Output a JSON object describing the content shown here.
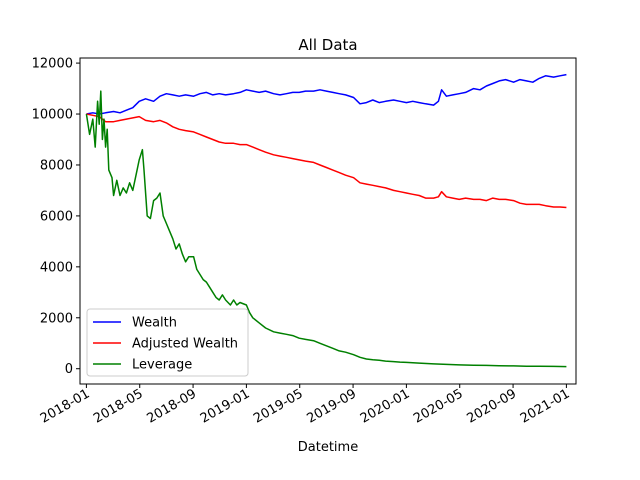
{
  "chart_data": {
    "type": "line",
    "title": "All Data",
    "xlabel": "Datetime",
    "ylabel": "",
    "xlim": [
      2017.96,
      2021.06
    ],
    "ylim": [
      -600,
      12200
    ],
    "x_ticks": [
      {
        "value": 2018.0,
        "label": "2018-01"
      },
      {
        "value": 2018.3333,
        "label": "2018-05"
      },
      {
        "value": 2018.6667,
        "label": "2018-09"
      },
      {
        "value": 2019.0,
        "label": "2019-01"
      },
      {
        "value": 2019.3333,
        "label": "2019-05"
      },
      {
        "value": 2019.6667,
        "label": "2019-09"
      },
      {
        "value": 2020.0,
        "label": "2020-01"
      },
      {
        "value": 2020.3333,
        "label": "2020-05"
      },
      {
        "value": 2020.6667,
        "label": "2020-09"
      },
      {
        "value": 2021.0,
        "label": "2021-01"
      }
    ],
    "y_ticks": [
      {
        "value": 0,
        "label": "0"
      },
      {
        "value": 2000,
        "label": "2000"
      },
      {
        "value": 4000,
        "label": "4000"
      },
      {
        "value": 6000,
        "label": "6000"
      },
      {
        "value": 8000,
        "label": "8000"
      },
      {
        "value": 10000,
        "label": "10000"
      },
      {
        "value": 12000,
        "label": "12000"
      }
    ],
    "legend_position": "lower-left",
    "series": [
      {
        "name": "Wealth",
        "color": "#0000ff",
        "points": [
          [
            2018.0,
            10000
          ],
          [
            2018.04,
            10050
          ],
          [
            2018.08,
            10000
          ],
          [
            2018.12,
            10050
          ],
          [
            2018.17,
            10100
          ],
          [
            2018.21,
            10050
          ],
          [
            2018.25,
            10150
          ],
          [
            2018.29,
            10250
          ],
          [
            2018.33,
            10500
          ],
          [
            2018.37,
            10600
          ],
          [
            2018.42,
            10500
          ],
          [
            2018.46,
            10700
          ],
          [
            2018.5,
            10800
          ],
          [
            2018.54,
            10750
          ],
          [
            2018.58,
            10700
          ],
          [
            2018.62,
            10750
          ],
          [
            2018.67,
            10700
          ],
          [
            2018.71,
            10800
          ],
          [
            2018.75,
            10850
          ],
          [
            2018.79,
            10750
          ],
          [
            2018.83,
            10800
          ],
          [
            2018.87,
            10750
          ],
          [
            2018.92,
            10800
          ],
          [
            2018.96,
            10850
          ],
          [
            2019.0,
            10950
          ],
          [
            2019.04,
            10900
          ],
          [
            2019.08,
            10850
          ],
          [
            2019.12,
            10900
          ],
          [
            2019.17,
            10800
          ],
          [
            2019.21,
            10750
          ],
          [
            2019.25,
            10800
          ],
          [
            2019.29,
            10850
          ],
          [
            2019.33,
            10850
          ],
          [
            2019.37,
            10900
          ],
          [
            2019.42,
            10900
          ],
          [
            2019.46,
            10950
          ],
          [
            2019.5,
            10900
          ],
          [
            2019.54,
            10850
          ],
          [
            2019.58,
            10800
          ],
          [
            2019.62,
            10750
          ],
          [
            2019.67,
            10650
          ],
          [
            2019.71,
            10400
          ],
          [
            2019.75,
            10450
          ],
          [
            2019.79,
            10550
          ],
          [
            2019.83,
            10450
          ],
          [
            2019.87,
            10500
          ],
          [
            2019.92,
            10550
          ],
          [
            2019.96,
            10500
          ],
          [
            2020.0,
            10450
          ],
          [
            2020.04,
            10500
          ],
          [
            2020.08,
            10450
          ],
          [
            2020.12,
            10400
          ],
          [
            2020.17,
            10350
          ],
          [
            2020.2,
            10500
          ],
          [
            2020.22,
            10950
          ],
          [
            2020.25,
            10700
          ],
          [
            2020.29,
            10750
          ],
          [
            2020.33,
            10800
          ],
          [
            2020.37,
            10850
          ],
          [
            2020.42,
            11000
          ],
          [
            2020.46,
            10950
          ],
          [
            2020.5,
            11100
          ],
          [
            2020.54,
            11200
          ],
          [
            2020.58,
            11300
          ],
          [
            2020.62,
            11350
          ],
          [
            2020.67,
            11250
          ],
          [
            2020.71,
            11350
          ],
          [
            2020.75,
            11300
          ],
          [
            2020.79,
            11250
          ],
          [
            2020.83,
            11400
          ],
          [
            2020.87,
            11500
          ],
          [
            2020.92,
            11450
          ],
          [
            2020.96,
            11500
          ],
          [
            2021.0,
            11550
          ]
        ]
      },
      {
        "name": "Adjusted Wealth",
        "color": "#ff0000",
        "points": [
          [
            2018.0,
            10000
          ],
          [
            2018.04,
            9950
          ],
          [
            2018.08,
            9900
          ],
          [
            2018.12,
            9700
          ],
          [
            2018.17,
            9700
          ],
          [
            2018.21,
            9750
          ],
          [
            2018.25,
            9800
          ],
          [
            2018.29,
            9850
          ],
          [
            2018.33,
            9900
          ],
          [
            2018.37,
            9750
          ],
          [
            2018.42,
            9700
          ],
          [
            2018.46,
            9750
          ],
          [
            2018.5,
            9650
          ],
          [
            2018.54,
            9500
          ],
          [
            2018.58,
            9400
          ],
          [
            2018.62,
            9350
          ],
          [
            2018.67,
            9300
          ],
          [
            2018.71,
            9200
          ],
          [
            2018.75,
            9100
          ],
          [
            2018.79,
            9000
          ],
          [
            2018.83,
            8900
          ],
          [
            2018.87,
            8850
          ],
          [
            2018.92,
            8850
          ],
          [
            2018.96,
            8800
          ],
          [
            2019.0,
            8800
          ],
          [
            2019.04,
            8700
          ],
          [
            2019.08,
            8600
          ],
          [
            2019.12,
            8500
          ],
          [
            2019.17,
            8400
          ],
          [
            2019.21,
            8350
          ],
          [
            2019.25,
            8300
          ],
          [
            2019.29,
            8250
          ],
          [
            2019.33,
            8200
          ],
          [
            2019.37,
            8150
          ],
          [
            2019.42,
            8100
          ],
          [
            2019.46,
            8000
          ],
          [
            2019.5,
            7900
          ],
          [
            2019.54,
            7800
          ],
          [
            2019.58,
            7700
          ],
          [
            2019.62,
            7600
          ],
          [
            2019.67,
            7500
          ],
          [
            2019.71,
            7300
          ],
          [
            2019.75,
            7250
          ],
          [
            2019.79,
            7200
          ],
          [
            2019.83,
            7150
          ],
          [
            2019.87,
            7100
          ],
          [
            2019.92,
            7000
          ],
          [
            2019.96,
            6950
          ],
          [
            2020.0,
            6900
          ],
          [
            2020.04,
            6850
          ],
          [
            2020.08,
            6800
          ],
          [
            2020.12,
            6700
          ],
          [
            2020.17,
            6700
          ],
          [
            2020.2,
            6750
          ],
          [
            2020.22,
            6950
          ],
          [
            2020.25,
            6750
          ],
          [
            2020.29,
            6700
          ],
          [
            2020.33,
            6650
          ],
          [
            2020.37,
            6700
          ],
          [
            2020.42,
            6650
          ],
          [
            2020.46,
            6650
          ],
          [
            2020.5,
            6600
          ],
          [
            2020.54,
            6700
          ],
          [
            2020.58,
            6650
          ],
          [
            2020.62,
            6650
          ],
          [
            2020.67,
            6600
          ],
          [
            2020.71,
            6500
          ],
          [
            2020.75,
            6450
          ],
          [
            2020.79,
            6450
          ],
          [
            2020.83,
            6450
          ],
          [
            2020.87,
            6400
          ],
          [
            2020.92,
            6350
          ],
          [
            2020.96,
            6350
          ],
          [
            2021.0,
            6330
          ]
        ]
      },
      {
        "name": "Leverage",
        "color": "#008000",
        "points": [
          [
            2018.0,
            10000
          ],
          [
            2018.02,
            9200
          ],
          [
            2018.04,
            9800
          ],
          [
            2018.055,
            8700
          ],
          [
            2018.07,
            10500
          ],
          [
            2018.08,
            9600
          ],
          [
            2018.09,
            10900
          ],
          [
            2018.1,
            9000
          ],
          [
            2018.11,
            9800
          ],
          [
            2018.12,
            8700
          ],
          [
            2018.13,
            9400
          ],
          [
            2018.14,
            7800
          ],
          [
            2018.16,
            7500
          ],
          [
            2018.17,
            6800
          ],
          [
            2018.19,
            7400
          ],
          [
            2018.21,
            6800
          ],
          [
            2018.23,
            7100
          ],
          [
            2018.25,
            6900
          ],
          [
            2018.27,
            7300
          ],
          [
            2018.29,
            7000
          ],
          [
            2018.31,
            7600
          ],
          [
            2018.33,
            8200
          ],
          [
            2018.35,
            8600
          ],
          [
            2018.36,
            7800
          ],
          [
            2018.38,
            6000
          ],
          [
            2018.4,
            5900
          ],
          [
            2018.42,
            6600
          ],
          [
            2018.44,
            6700
          ],
          [
            2018.46,
            6900
          ],
          [
            2018.48,
            6000
          ],
          [
            2018.5,
            5700
          ],
          [
            2018.52,
            5400
          ],
          [
            2018.54,
            5100
          ],
          [
            2018.56,
            4700
          ],
          [
            2018.58,
            4900
          ],
          [
            2018.6,
            4500
          ],
          [
            2018.62,
            4200
          ],
          [
            2018.64,
            4400
          ],
          [
            2018.67,
            4400
          ],
          [
            2018.69,
            3900
          ],
          [
            2018.71,
            3700
          ],
          [
            2018.73,
            3500
          ],
          [
            2018.75,
            3400
          ],
          [
            2018.77,
            3200
          ],
          [
            2018.79,
            3000
          ],
          [
            2018.81,
            2800
          ],
          [
            2018.83,
            2700
          ],
          [
            2018.85,
            2900
          ],
          [
            2018.87,
            2700
          ],
          [
            2018.9,
            2500
          ],
          [
            2018.92,
            2700
          ],
          [
            2018.94,
            2500
          ],
          [
            2018.96,
            2600
          ],
          [
            2019.0,
            2500
          ],
          [
            2019.02,
            2200
          ],
          [
            2019.04,
            2000
          ],
          [
            2019.08,
            1800
          ],
          [
            2019.12,
            1600
          ],
          [
            2019.17,
            1450
          ],
          [
            2019.21,
            1400
          ],
          [
            2019.25,
            1350
          ],
          [
            2019.29,
            1300
          ],
          [
            2019.33,
            1200
          ],
          [
            2019.37,
            1150
          ],
          [
            2019.42,
            1100
          ],
          [
            2019.46,
            1000
          ],
          [
            2019.5,
            900
          ],
          [
            2019.54,
            800
          ],
          [
            2019.58,
            700
          ],
          [
            2019.62,
            650
          ],
          [
            2019.67,
            550
          ],
          [
            2019.71,
            450
          ],
          [
            2019.75,
            380
          ],
          [
            2019.79,
            350
          ],
          [
            2019.83,
            330
          ],
          [
            2019.87,
            300
          ],
          [
            2019.92,
            280
          ],
          [
            2019.96,
            260
          ],
          [
            2020.0,
            250
          ],
          [
            2020.08,
            220
          ],
          [
            2020.17,
            190
          ],
          [
            2020.25,
            170
          ],
          [
            2020.33,
            150
          ],
          [
            2020.42,
            140
          ],
          [
            2020.5,
            130
          ],
          [
            2020.58,
            120
          ],
          [
            2020.67,
            110
          ],
          [
            2020.75,
            100
          ],
          [
            2020.83,
            95
          ],
          [
            2020.92,
            90
          ],
          [
            2021.0,
            85
          ]
        ]
      }
    ]
  }
}
